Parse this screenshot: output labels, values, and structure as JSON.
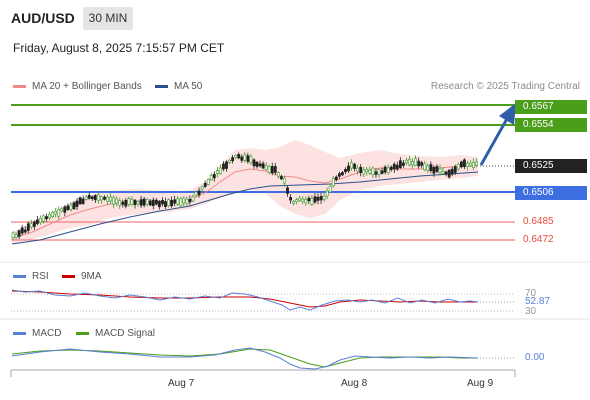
{
  "header": {
    "symbol": "AUD/USD",
    "timeframe": "30 MIN",
    "datetime": "Friday, August 8, 2025 7:15:57 PM CET"
  },
  "legend": {
    "ma20": "MA 20 + Bollinger Bands",
    "ma50": "MA 50",
    "credit": "Research © 2025 Trading Central"
  },
  "colors": {
    "green_level": "#4a9e1a",
    "blue_level": "#3d6fe3",
    "red_level": "#f08080",
    "ma20": "#f08a8a",
    "ma50": "#2b4f8c",
    "band_fill": "#fde2e2",
    "arrow": "#2f5fa8",
    "rsi": "#5b7fd6",
    "rsi_ma": "#cc0000",
    "macd": "#5b7fd6",
    "macd_signal": "#4a9e1a"
  },
  "price_levels": [
    {
      "label": "0.6567",
      "kind": "green"
    },
    {
      "label": "0.6554",
      "kind": "green"
    },
    {
      "label": "0.6525",
      "kind": "current"
    },
    {
      "label": "0.6506",
      "kind": "blue"
    },
    {
      "label": "0.6485",
      "kind": "red"
    },
    {
      "label": "0.6472",
      "kind": "red"
    }
  ],
  "rsi": {
    "label": "RSI",
    "ma_label": "9MA",
    "level_70": "70",
    "level_30": "30",
    "value": "52.87"
  },
  "macd": {
    "label": "MACD",
    "signal_label": "MACD Signal",
    "value": "0.00"
  },
  "x_axis": [
    "Aug 7",
    "Aug 8",
    "Aug 9"
  ]
}
